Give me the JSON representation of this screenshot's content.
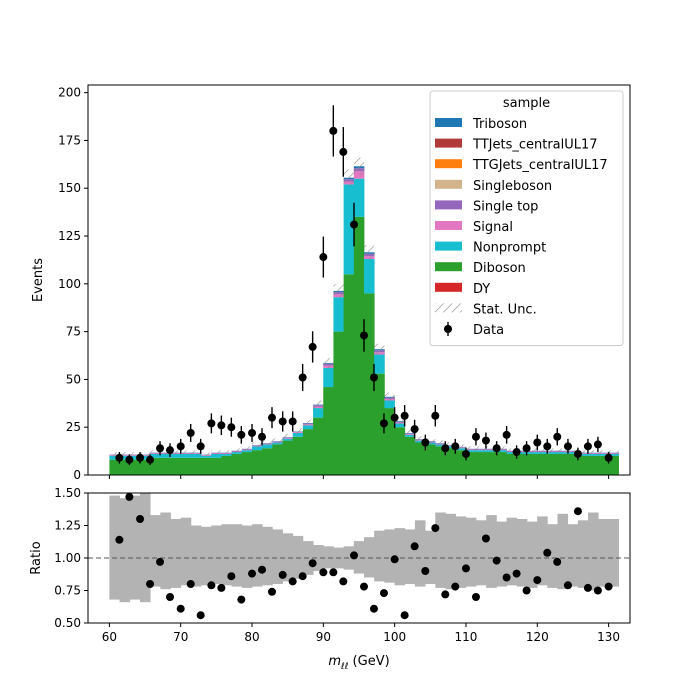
{
  "chart_data": [
    {
      "type": "bar",
      "panel": "main",
      "stacked_histogram": true,
      "xlabel": "m_ll (GeV)",
      "xlabel_main": "m",
      "xlabel_sub": "ℓℓ",
      "xlabel_unit": " (GeV)",
      "ylabel": "Events",
      "xlim": [
        57,
        133
      ],
      "ylim": [
        0,
        204
      ],
      "xticks": [
        60,
        70,
        80,
        90,
        100,
        110,
        120,
        130
      ],
      "yticks": [
        0,
        25,
        50,
        75,
        100,
        125,
        150,
        175,
        200
      ],
      "bin_edges_start": 60,
      "bin_width": 1.428,
      "legend": {
        "title": "sample",
        "placement": "top-right",
        "entries": [
          {
            "name": "Triboson",
            "color": "#1f77b4",
            "marker": "patch"
          },
          {
            "name": "TTJets_centralUL17",
            "color": "#b03a3a",
            "marker": "patch"
          },
          {
            "name": "TTGJets_centralUL17",
            "color": "#ff7f0e",
            "marker": "patch"
          },
          {
            "name": "Singleboson",
            "color": "#d2b48c",
            "marker": "patch"
          },
          {
            "name": "Single top",
            "color": "#9467bd",
            "marker": "patch"
          },
          {
            "name": "Signal",
            "color": "#e377c2",
            "marker": "patch"
          },
          {
            "name": "Nonprompt",
            "color": "#17becf",
            "marker": "patch"
          },
          {
            "name": "Diboson",
            "color": "#2ca02c",
            "marker": "patch"
          },
          {
            "name": "DY",
            "color": "#d62728",
            "marker": "patch"
          },
          {
            "name": "Stat. Unc.",
            "color": "#888888",
            "marker": "hatch"
          },
          {
            "name": "Data",
            "color": "#000000",
            "marker": "errorbar"
          }
        ]
      },
      "series": [
        {
          "name": "Diboson",
          "color": "#2ca02c",
          "values": [
            8,
            8,
            8,
            8,
            9,
            9,
            9,
            9,
            9,
            9,
            9,
            10,
            11,
            12,
            13,
            14,
            16,
            18,
            20,
            24,
            30,
            46,
            75,
            105,
            135,
            95,
            53,
            35,
            25,
            20,
            17,
            16,
            15,
            14,
            13,
            12,
            12,
            12,
            12,
            11,
            11,
            11,
            11,
            11,
            11,
            11,
            10,
            10,
            10,
            10
          ]
        },
        {
          "name": "Nonprompt",
          "color": "#17becf",
          "values": [
            2,
            2,
            2,
            2,
            2,
            2,
            2,
            2,
            2,
            1,
            2,
            1,
            1,
            1,
            2,
            2,
            1,
            1,
            2,
            2,
            5,
            10,
            18,
            47,
            20,
            18,
            10,
            4,
            2,
            1,
            1,
            1,
            1,
            1,
            1,
            1,
            1,
            1,
            1,
            1,
            1,
            1,
            1,
            1,
            1,
            1,
            1,
            1,
            1,
            1
          ]
        },
        {
          "name": "Signal",
          "color": "#e377c2",
          "values": [
            0.3,
            0.3,
            0.3,
            0.3,
            0.3,
            0.3,
            0.3,
            0.3,
            0.3,
            0.3,
            0.3,
            0.3,
            0.3,
            0.3,
            0.3,
            0.3,
            0.3,
            0.4,
            0.4,
            0.5,
            0.8,
            1.2,
            1.5,
            1.5,
            4,
            1.5,
            1.2,
            0.8,
            0.5,
            0.4,
            0.3,
            0.3,
            0.3,
            0.3,
            0.3,
            0.3,
            0.3,
            0.3,
            0.3,
            0.3,
            0.3,
            0.3,
            0.3,
            0.3,
            0.3,
            0.3,
            0.3,
            0.3,
            0.3,
            0.3
          ]
        },
        {
          "name": "Single top",
          "color": "#9467bd",
          "values": [
            0.3,
            0.3,
            0.3,
            0.3,
            0.3,
            0.3,
            0.3,
            0.3,
            0.3,
            0.3,
            0.3,
            0.3,
            0.3,
            0.3,
            0.3,
            0.3,
            0.3,
            0.3,
            0.3,
            0.5,
            0.7,
            1,
            1.2,
            1.2,
            1.5,
            1.2,
            1,
            0.7,
            0.4,
            0.3,
            0.3,
            0.3,
            0.3,
            0.3,
            0.3,
            0.3,
            0.3,
            0.3,
            0.3,
            0.3,
            0.3,
            0.3,
            0.3,
            0.3,
            0.3,
            0.3,
            0.3,
            0.3,
            0.3,
            0.3
          ]
        },
        {
          "name": "Triboson",
          "color": "#1f77b4",
          "values": [
            0.1,
            0.1,
            0.1,
            0.1,
            0.1,
            0.1,
            0.1,
            0.1,
            0.1,
            0.1,
            0.1,
            0.1,
            0.1,
            0.1,
            0.1,
            0.1,
            0.1,
            0.1,
            0.1,
            0.2,
            0.3,
            0.4,
            0.6,
            0.8,
            1,
            0.8,
            0.6,
            0.4,
            0.3,
            0.2,
            0.1,
            0.1,
            0.1,
            0.1,
            0.1,
            0.1,
            0.1,
            0.1,
            0.1,
            0.1,
            0.1,
            0.1,
            0.1,
            0.1,
            0.1,
            0.1,
            0.1,
            0.1,
            0.1,
            0.1
          ]
        }
      ],
      "data_points": {
        "name": "Data",
        "x": [
          61.4,
          62.8,
          64.3,
          65.7,
          67.1,
          68.5,
          70.0,
          71.4,
          72.8,
          74.3,
          75.7,
          77.1,
          78.5,
          80.0,
          81.4,
          82.8,
          84.3,
          85.7,
          87.1,
          88.5,
          90.0,
          91.4,
          92.8,
          94.3,
          95.7,
          97.1,
          98.5,
          100.0,
          101.4,
          102.8,
          104.3,
          105.7,
          107.1,
          108.5,
          110.0,
          111.4,
          112.8,
          114.3,
          115.7,
          117.1,
          118.5,
          120.0,
          121.4,
          122.8,
          124.3,
          125.7,
          127.1,
          128.5,
          130.0
        ],
        "y": [
          9,
          8,
          9,
          8,
          14,
          13,
          15,
          22,
          15,
          27,
          26,
          25,
          21,
          22,
          20,
          30,
          28,
          28,
          51,
          67,
          114,
          180,
          169,
          131,
          73,
          51,
          27,
          30,
          31,
          24,
          17,
          31,
          14,
          15,
          11,
          20,
          18,
          14,
          21,
          12,
          14,
          17,
          15,
          20,
          15,
          11,
          15,
          16,
          9
        ],
        "yerr": [
          3,
          2.8,
          3,
          2.8,
          3.7,
          3.6,
          3.9,
          4.7,
          3.9,
          5.2,
          5.1,
          5,
          4.6,
          4.7,
          4.5,
          5.5,
          5.3,
          5.3,
          7.1,
          8.2,
          10.7,
          13.4,
          13,
          11.4,
          8.5,
          7.1,
          5.2,
          5.5,
          5.6,
          4.9,
          4.1,
          5.6,
          3.7,
          3.9,
          3.3,
          4.5,
          4.2,
          3.7,
          4.6,
          3.5,
          3.7,
          4.1,
          3.9,
          4.5,
          3.9,
          3.3,
          3.9,
          4,
          3
        ]
      }
    },
    {
      "type": "scatter",
      "panel": "ratio",
      "ylabel": "Ratio",
      "xlim": [
        57,
        133
      ],
      "ylim": [
        0.5,
        1.5
      ],
      "xticks": [
        60,
        70,
        80,
        90,
        100,
        110,
        120,
        130
      ],
      "yticks": [
        0.5,
        0.75,
        1.0,
        1.25,
        1.5
      ],
      "ytick_labels": [
        "0.50",
        "0.75",
        "1.00",
        "1.25",
        "1.50"
      ],
      "reference_line": 1.0,
      "uncertainty_band": {
        "lower": [
          0.68,
          0.66,
          0.68,
          0.66,
          0.78,
          0.76,
          0.77,
          0.79,
          0.78,
          0.79,
          0.8,
          0.79,
          0.78,
          0.77,
          0.78,
          0.79,
          0.8,
          0.82,
          0.84,
          0.87,
          0.9,
          0.92,
          0.92,
          0.91,
          0.88,
          0.85,
          0.82,
          0.81,
          0.79,
          0.8,
          0.78,
          0.8,
          0.77,
          0.76,
          0.77,
          0.78,
          0.79,
          0.77,
          0.78,
          0.79,
          0.78,
          0.77,
          0.79,
          0.77,
          0.76,
          0.78,
          0.77,
          0.75,
          0.78,
          0.78
        ],
        "upper": [
          1.48,
          1.46,
          1.48,
          1.5,
          1.33,
          1.35,
          1.3,
          1.31,
          1.25,
          1.24,
          1.25,
          1.26,
          1.26,
          1.25,
          1.26,
          1.24,
          1.22,
          1.19,
          1.17,
          1.13,
          1.1,
          1.09,
          1.08,
          1.09,
          1.13,
          1.16,
          1.21,
          1.22,
          1.23,
          1.22,
          1.29,
          1.21,
          1.35,
          1.34,
          1.32,
          1.31,
          1.29,
          1.33,
          1.28,
          1.31,
          1.3,
          1.28,
          1.32,
          1.26,
          1.34,
          1.26,
          1.29,
          1.35,
          1.3,
          1.3
        ]
      },
      "points": {
        "x": [
          61.4,
          62.8,
          64.3,
          65.7,
          67.1,
          68.5,
          70.0,
          71.4,
          72.8,
          74.3,
          75.7,
          77.1,
          78.5,
          80.0,
          81.4,
          82.8,
          84.3,
          85.7,
          87.1,
          88.5,
          90.0,
          91.4,
          92.8,
          94.3,
          95.7,
          97.1,
          98.5,
          100.0,
          101.4,
          102.8,
          104.3,
          105.7,
          107.1,
          108.5,
          110.0,
          111.4,
          112.8,
          114.3,
          115.7,
          117.1,
          118.5,
          120.0,
          121.4,
          122.8,
          124.3,
          125.7,
          127.1,
          128.5,
          130.0
        ],
        "y": [
          1.14,
          1.47,
          1.3,
          0.8,
          0.97,
          0.7,
          0.61,
          0.8,
          0.56,
          0.79,
          0.77,
          0.86,
          0.68,
          0.88,
          0.91,
          0.74,
          0.87,
          0.82,
          0.86,
          0.96,
          0.89,
          0.89,
          0.82,
          1.02,
          0.78,
          0.61,
          0.73,
          0.99,
          0.56,
          1.09,
          0.9,
          1.23,
          0.72,
          0.78,
          0.92,
          0.7,
          1.15,
          0.98,
          0.85,
          0.88,
          0.75,
          0.83,
          1.04,
          0.97,
          0.79,
          1.36,
          0.77,
          0.75,
          0.78
        ]
      }
    }
  ]
}
